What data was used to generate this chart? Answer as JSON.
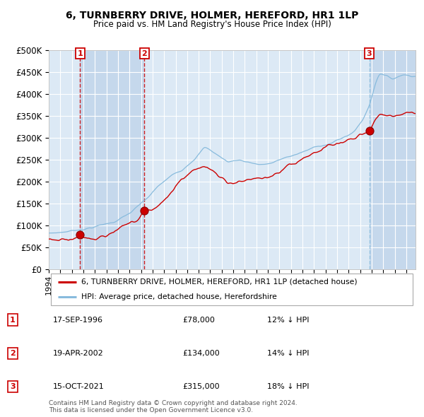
{
  "title": "6, TURNBERRY DRIVE, HOLMER, HEREFORD, HR1 1LP",
  "subtitle": "Price paid vs. HM Land Registry's House Price Index (HPI)",
  "sale_label": "6, TURNBERRY DRIVE, HOLMER, HEREFORD, HR1 1LP (detached house)",
  "hpi_label": "HPI: Average price, detached house, Herefordshire",
  "sale_color": "#cc0000",
  "hpi_color": "#88bbdd",
  "plot_bg_color": "#dce9f5",
  "grid_color": "#ffffff",
  "ytick_labels": [
    "£0",
    "£50K",
    "£100K",
    "£150K",
    "£200K",
    "£250K",
    "£300K",
    "£350K",
    "£400K",
    "£450K",
    "£500K"
  ],
  "ytick_values": [
    0,
    50000,
    100000,
    150000,
    200000,
    250000,
    300000,
    350000,
    400000,
    450000,
    500000
  ],
  "ylim": [
    0,
    500000
  ],
  "xlim_start": 1994.0,
  "xlim_end": 2025.8,
  "sales": [
    {
      "num": 1,
      "date": "17-SEP-1996",
      "price": 78000,
      "year": 1996.71,
      "pct": "12% ↓ HPI"
    },
    {
      "num": 2,
      "date": "19-APR-2002",
      "price": 134000,
      "year": 2002.29,
      "pct": "14% ↓ HPI"
    },
    {
      "num": 3,
      "date": "15-OCT-2021",
      "price": 315000,
      "year": 2021.79,
      "pct": "18% ↓ HPI"
    }
  ],
  "xtick_years": [
    1994,
    1995,
    1996,
    1997,
    1998,
    1999,
    2000,
    2001,
    2002,
    2003,
    2004,
    2005,
    2006,
    2007,
    2008,
    2009,
    2010,
    2011,
    2012,
    2013,
    2014,
    2015,
    2016,
    2017,
    2018,
    2019,
    2020,
    2021,
    2022,
    2023,
    2024,
    2025
  ],
  "footer": "Contains HM Land Registry data © Crown copyright and database right 2024.\nThis data is licensed under the Open Government Licence v3.0.",
  "vline_colors": [
    "#cc0000",
    "#cc0000",
    "#88bbdd"
  ],
  "shade_regions": [
    {
      "start": 1994.0,
      "end": 1996.71,
      "color": "#dce9f5"
    },
    {
      "start": 1996.71,
      "end": 2002.29,
      "color": "#c5d8ec"
    },
    {
      "start": 2002.29,
      "end": 2021.79,
      "color": "#dce9f5"
    },
    {
      "start": 2021.79,
      "end": 2025.8,
      "color": "#c5d8ec"
    }
  ]
}
